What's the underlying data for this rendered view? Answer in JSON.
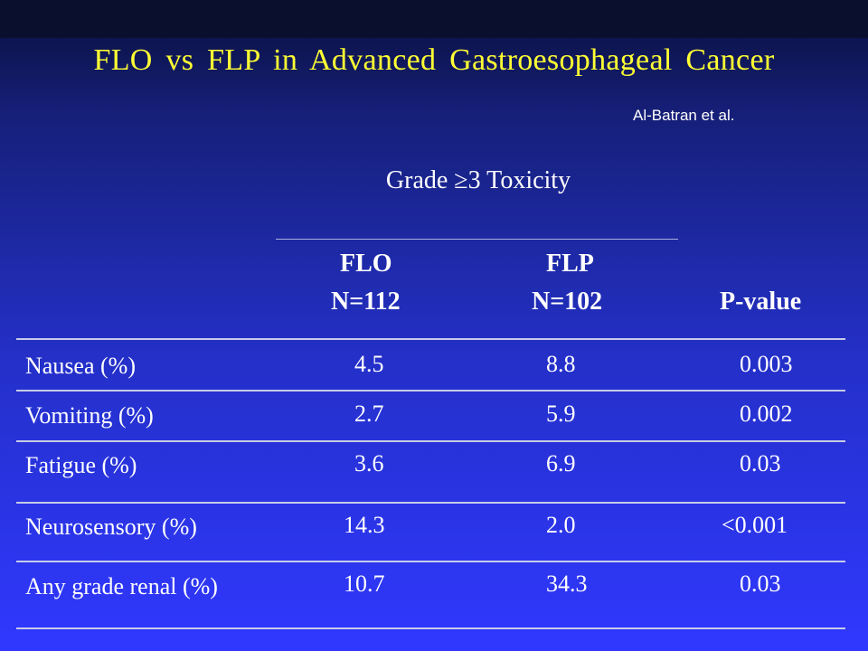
{
  "title": "FLO vs FLP in Advanced Gastroesophageal Cancer",
  "citation": "Al-Batran et al.",
  "subheading": "Grade ≥3 Toxicity",
  "columns": {
    "flo_name": "FLO",
    "flo_n": "N=112",
    "flp_name": "FLP",
    "flp_n": "N=102",
    "pvalue": "P-value"
  },
  "rows": [
    {
      "label": "Nausea (%)",
      "flo": "4.5",
      "flp": "8.8",
      "p": "0.003"
    },
    {
      "label": "Vomiting (%)",
      "flo": "2.7",
      "flp": "5.9",
      "p": "0.002"
    },
    {
      "label": "Fatigue (%)",
      "flo": "3.6",
      "flp": "6.9",
      "p": "0.03"
    },
    {
      "label": "Neurosensory (%)",
      "flo": "14.3",
      "flp": "2.0",
      "p": "<0.001"
    },
    {
      "label": "Any grade renal (%)",
      "flo": "10.7",
      "flp": "34.3",
      "p": "0.03"
    }
  ],
  "colors": {
    "title": "#ffff33",
    "text": "#ffffff",
    "background": "#2430c8"
  }
}
